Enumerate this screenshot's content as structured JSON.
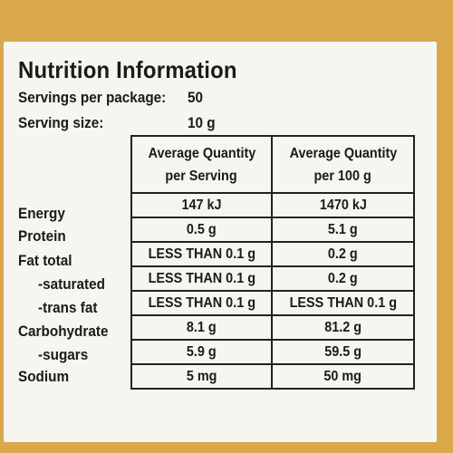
{
  "title": "Nutrition Information",
  "servings": {
    "label": "Servings per package:",
    "value": "50"
  },
  "serving_size": {
    "label": "Serving size:",
    "value": "10 g"
  },
  "columns": {
    "per_serving_line1": "Average Quantity",
    "per_serving_line2": "per Serving",
    "per_100g_line1": "Average Quantity",
    "per_100g_line2": "per 100 g"
  },
  "rows": [
    {
      "label": "Energy",
      "per_serving": "147 kJ",
      "per_100g": "1470 kJ"
    },
    {
      "label": "Protein",
      "per_serving": "0.5 g",
      "per_100g": "5.1 g"
    },
    {
      "label": "Fat total",
      "per_serving": "LESS THAN 0.1 g",
      "per_100g": "0.2 g"
    },
    {
      "label": "-saturated",
      "per_serving": "LESS THAN 0.1 g",
      "per_100g": "0.2 g"
    },
    {
      "label": "-trans fat",
      "per_serving": "LESS THAN 0.1 g",
      "per_100g": "LESS THAN 0.1 g"
    },
    {
      "label": "Carbohydrate",
      "per_serving": "8.1 g",
      "per_100g": "81.2 g"
    },
    {
      "label": "-sugars",
      "per_serving": "5.9 g",
      "per_100g": "59.5 g"
    },
    {
      "label": "Sodium",
      "per_serving": "5 mg",
      "per_100g": "50 mg"
    }
  ]
}
